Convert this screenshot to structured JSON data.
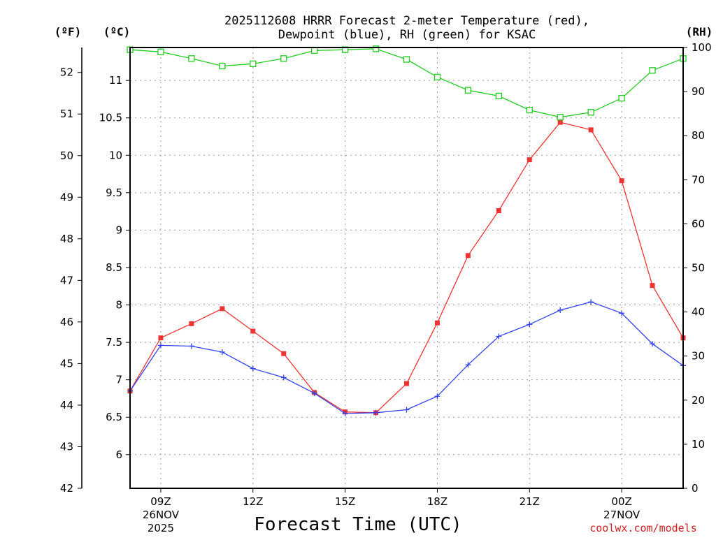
{
  "chart_data": {
    "type": "line",
    "title": "2025112608 HRRR Forecast 2-meter Temperature (red),",
    "subtitle": "Dewpoint (blue), RH (green) for KSAC",
    "xlabel": "Forecast Time (UTC)",
    "credit": "coolwx.com/models",
    "left_outer_axis": {
      "unit_label": "(ºF)",
      "ylim": [
        42,
        52.6
      ],
      "ticks": [
        42,
        43,
        44,
        45,
        46,
        47,
        48,
        49,
        50,
        51,
        52
      ]
    },
    "left_inner_axis": {
      "unit_label": "(ºC)",
      "ylim": [
        5.55,
        11.44
      ],
      "ticks": [
        "6",
        "6.5",
        "7",
        "7.5",
        "8",
        "8.5",
        "9",
        "9.5",
        "10",
        "10.5",
        "11"
      ]
    },
    "right_axis": {
      "unit_label": "(RH)",
      "ylim": [
        0,
        100
      ],
      "ticks": [
        0,
        10,
        20,
        30,
        40,
        50,
        60,
        70,
        80,
        90,
        100
      ]
    },
    "x_hours": [
      8,
      9,
      10,
      11,
      12,
      13,
      14,
      15,
      16,
      17,
      18,
      19,
      20,
      21,
      22,
      23,
      24,
      25,
      26
    ],
    "x_ticks": [
      {
        "hour": 9,
        "label": "09Z",
        "line2": "26NOV",
        "line3": "2025"
      },
      {
        "hour": 12,
        "label": "12Z",
        "line2": "",
        "line3": ""
      },
      {
        "hour": 15,
        "label": "15Z",
        "line2": "",
        "line3": ""
      },
      {
        "hour": 18,
        "label": "18Z",
        "line2": "",
        "line3": ""
      },
      {
        "hour": 21,
        "label": "21Z",
        "line2": "",
        "line3": ""
      },
      {
        "hour": 24,
        "label": "00Z",
        "line2": "27NOV",
        "line3": ""
      }
    ],
    "series": [
      {
        "name": "Temperature (red)",
        "color": "#ee3333",
        "marker": "filled-square",
        "axis": "celsius",
        "values": [
          6.85,
          7.56,
          7.75,
          7.95,
          7.65,
          7.35,
          6.83,
          6.57,
          6.56,
          6.95,
          7.76,
          8.66,
          9.26,
          9.94,
          10.44,
          10.34,
          9.66,
          8.26,
          7.56
        ]
      },
      {
        "name": "Dewpoint (blue)",
        "color": "#3344ee",
        "marker": "plus",
        "axis": "celsius",
        "values": [
          6.85,
          7.46,
          7.45,
          7.37,
          7.15,
          7.03,
          6.82,
          6.55,
          6.56,
          6.6,
          6.78,
          7.2,
          7.58,
          7.74,
          7.93,
          8.04,
          7.89,
          7.48,
          7.19
        ]
      },
      {
        "name": "RH (green)",
        "color": "#22cc22",
        "marker": "open-square",
        "axis": "rh",
        "values": [
          99.5,
          99,
          97.5,
          95.8,
          96.3,
          97.5,
          99.3,
          99.5,
          99.7,
          97.3,
          93.3,
          90.3,
          89,
          85.8,
          84.2,
          85.3,
          88.5,
          94.8,
          97.5
        ]
      }
    ]
  }
}
